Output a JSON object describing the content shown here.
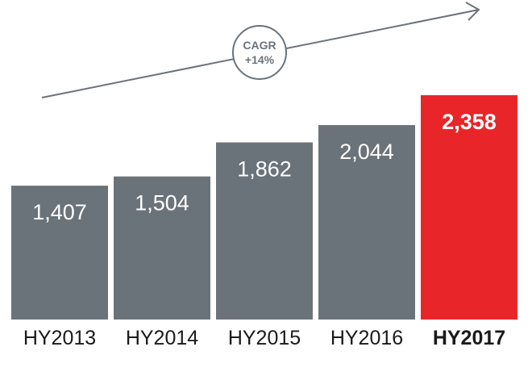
{
  "chart_data": {
    "type": "bar",
    "categories": [
      "HY2013",
      "HY2014",
      "HY2015",
      "HY2016",
      "HY2017"
    ],
    "values": [
      1407,
      1504,
      1862,
      2044,
      2358
    ],
    "value_labels": [
      "1,407",
      "1,504",
      "1,862",
      "2,044",
      "2,358"
    ],
    "highlight_index": 4,
    "colors": {
      "bar": "#6b737a",
      "highlight": "#e8262a",
      "arrow": "#6b737a"
    },
    "annotation": {
      "line1": "CAGR",
      "line2": "+14%"
    },
    "ylim": [
      0,
      2500
    ],
    "grid": false
  }
}
